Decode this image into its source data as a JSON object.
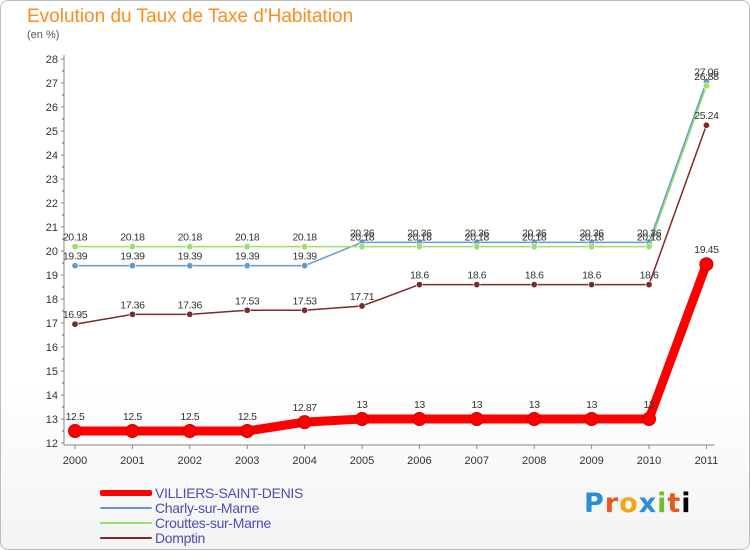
{
  "header": {
    "title": "Evolution du Taux de Taxe d'Habitation",
    "subtitle": "(en %)"
  },
  "brand": {
    "letters": [
      "P",
      "r",
      "o",
      "x",
      "i",
      "t",
      "i"
    ]
  },
  "chart_data": {
    "type": "line",
    "title": "Evolution du Taux de Taxe d'Habitation",
    "ylabel": "(en %)",
    "xlabel": "",
    "ylim": [
      12,
      28
    ],
    "grid": false,
    "legend_position": "bottom-left",
    "categories": [
      "2000",
      "2001",
      "2002",
      "2003",
      "2004",
      "2005",
      "2006",
      "2007",
      "2008",
      "2009",
      "2010",
      "2011"
    ],
    "yticks": [
      "12",
      "13",
      "14",
      "15",
      "16",
      "17",
      "18",
      "19",
      "20",
      "21",
      "22",
      "23",
      "24",
      "25",
      "26",
      "27",
      "28"
    ],
    "series": [
      {
        "name": "VILLIERS-SAINT-DENIS",
        "color": "#ff0000",
        "values": [
          12.5,
          12.5,
          12.5,
          12.5,
          12.87,
          13,
          13,
          13,
          13,
          13,
          13,
          19.45
        ],
        "labels": [
          "12.5",
          "12.5",
          "12.5",
          "12.5",
          "12.87",
          "13",
          "13",
          "13",
          "13",
          "13",
          "13",
          "19.45"
        ]
      },
      {
        "name": "Charly-sur-Marne",
        "color": "#6699cc",
        "values": [
          19.39,
          19.39,
          19.39,
          19.39,
          19.39,
          20.36,
          20.36,
          20.36,
          20.36,
          20.36,
          20.36,
          27.06
        ],
        "labels": [
          "19.39",
          "19.39",
          "19.39",
          "19.39",
          "19.39",
          "20.36",
          "20.36",
          "20.36",
          "20.36",
          "20.36",
          "20.36",
          "27.06"
        ]
      },
      {
        "name": "Crouttes-sur-Marne",
        "color": "#99e066",
        "values": [
          20.18,
          20.18,
          20.18,
          20.18,
          20.18,
          20.18,
          20.18,
          20.18,
          20.18,
          20.18,
          20.18,
          26.88
        ],
        "labels": [
          "20.18",
          "20.18",
          "20.18",
          "20.18",
          "20.18",
          "20.18",
          "20.18",
          "20.18",
          "20.18",
          "20.18",
          "20.18",
          "26.88"
        ]
      },
      {
        "name": "Domptin",
        "color": "#7a2a2a",
        "values": [
          16.95,
          17.36,
          17.36,
          17.53,
          17.53,
          17.71,
          18.6,
          18.6,
          18.6,
          18.6,
          18.6,
          25.24
        ],
        "labels": [
          "16.95",
          "17.36",
          "17.36",
          "17.53",
          "17.53",
          "17.71",
          "18.6",
          "18.6",
          "18.6",
          "18.6",
          "18.6",
          "25.24"
        ]
      }
    ]
  }
}
